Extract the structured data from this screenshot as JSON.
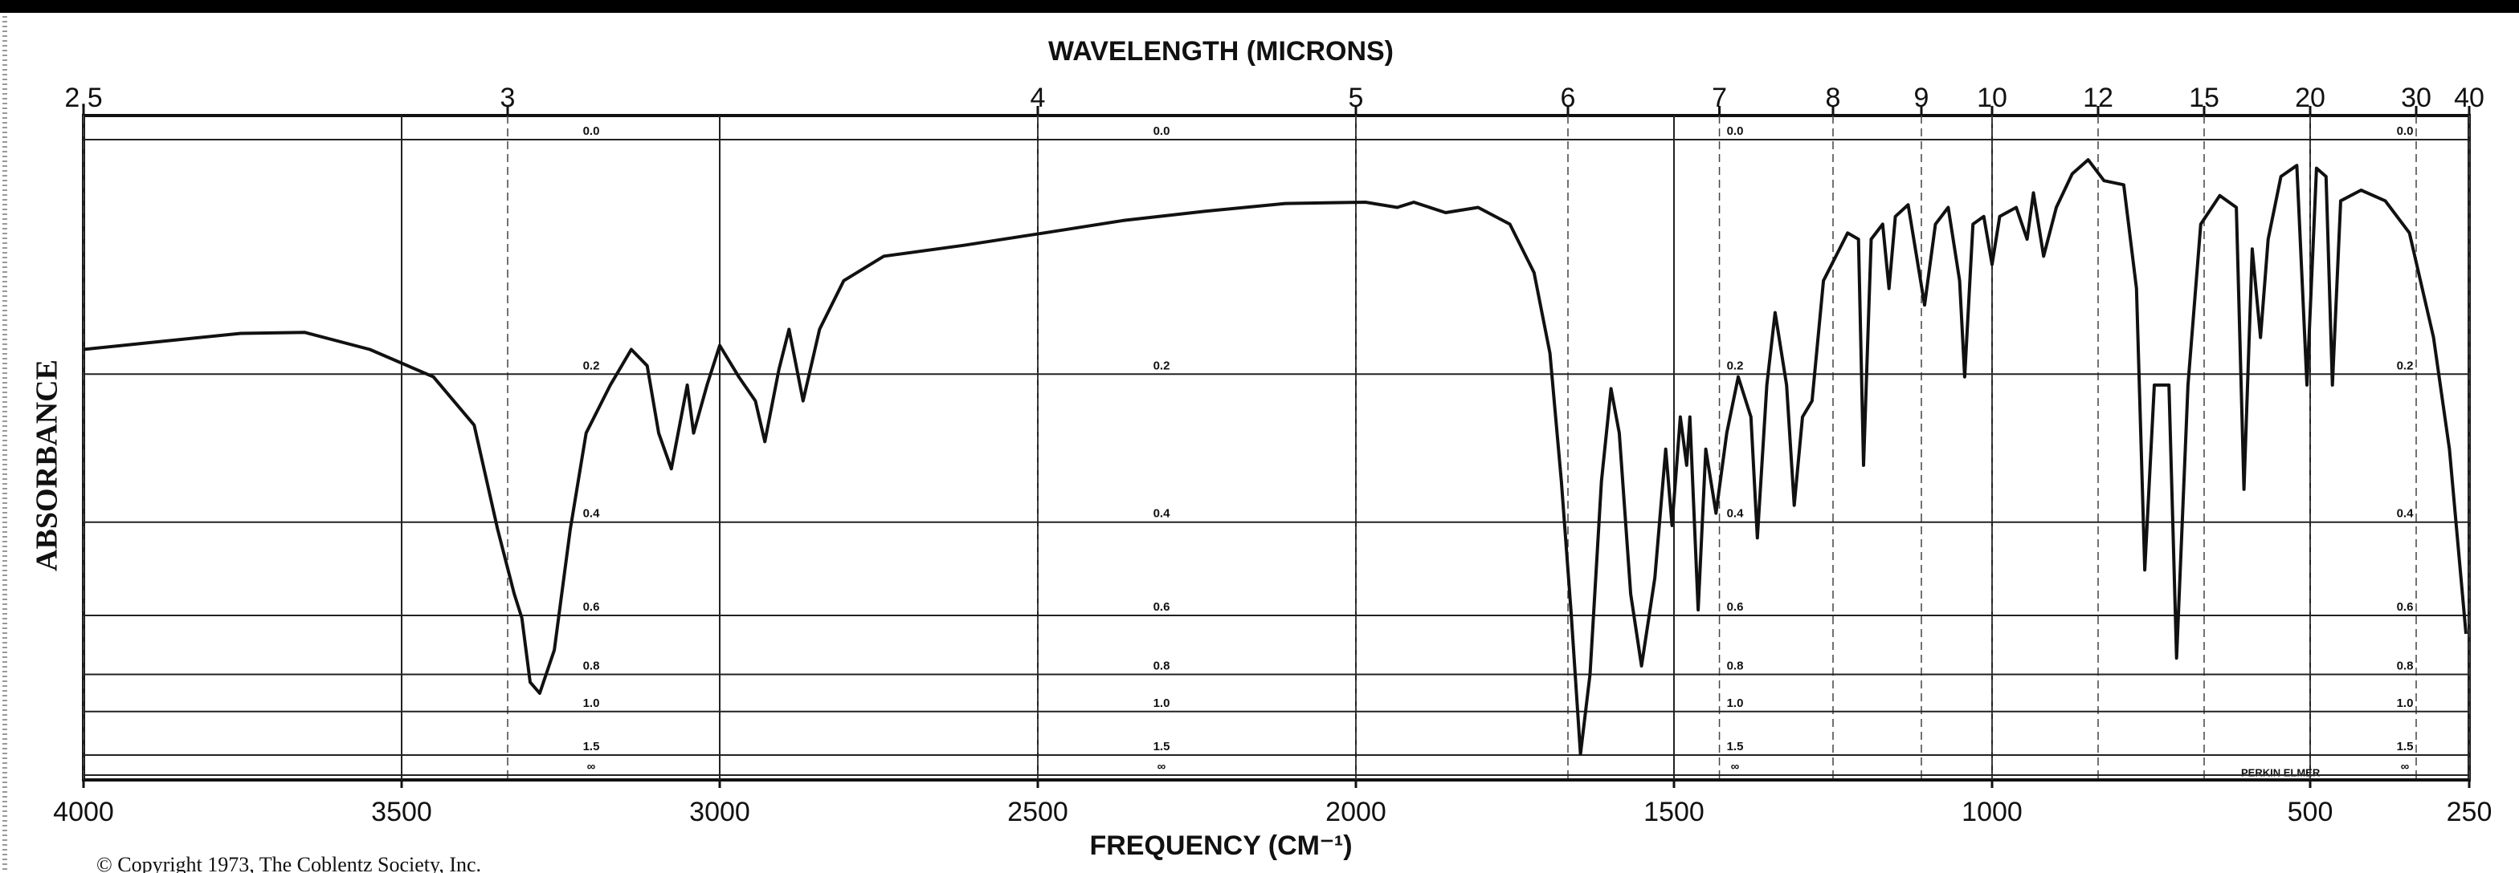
{
  "chart_data": {
    "type": "line",
    "x2_label": "WAVELENGTH (MICRONS)",
    "x_label": "FREQUENCY (CM⁻¹)",
    "y_label": "ABSORBANCE",
    "copyright": "© Copyright 1973, The Coblentz Society, Inc.",
    "brand": "PERKIN ELMER",
    "color": "#111111",
    "grid": true,
    "xlim": [
      4000,
      250
    ],
    "xticks": [
      4000,
      3500,
      3000,
      2500,
      2000,
      1500,
      1000,
      500,
      250
    ],
    "x2ticks": [
      2.5,
      3,
      4,
      5,
      6,
      7,
      8,
      9,
      10,
      12,
      15,
      20,
      30,
      40
    ],
    "ylim": [
      0,
      null
    ],
    "yticks": [
      {
        "value": 0,
        "label": "0.0"
      },
      0.2,
      0.4,
      0.6,
      0.8,
      {
        "value": 1,
        "label": "1.0"
      },
      1.5,
      {
        "value": null,
        "label": "∞"
      }
    ],
    "x": [
      4000,
      3879,
      3753,
      3652,
      3550,
      3450,
      3386,
      3349,
      3323,
      3311,
      3298,
      3283,
      3260,
      3235,
      3210,
      3172,
      3139,
      3114,
      3096,
      3076,
      3051,
      3041,
      3020,
      3000,
      2970,
      2944,
      2929,
      2907,
      2891,
      2869,
      2843,
      2805,
      2742,
      2616,
      2490,
      2364,
      2238,
      2111,
      1985,
      1935,
      1909,
      1859,
      1808,
      1758,
      1720,
      1695,
      1677,
      1662,
      1647,
      1632,
      1614,
      1599,
      1586,
      1568,
      1551,
      1530,
      1513,
      1503,
      1490,
      1480,
      1475,
      1462,
      1450,
      1434,
      1417,
      1399,
      1379,
      1369,
      1354,
      1341,
      1323,
      1311,
      1298,
      1283,
      1265,
      1227,
      1210,
      1202,
      1190,
      1172,
      1162,
      1152,
      1132,
      1106,
      1089,
      1069,
      1051,
      1043,
      1030,
      1013,
      1000,
      988,
      962,
      945,
      935,
      919,
      899,
      874,
      849,
      824,
      793,
      773,
      760,
      745,
      722,
      710,
      692,
      672,
      642,
      616,
      604,
      591,
      578,
      566,
      546,
      521,
      505,
      490,
      475,
      465,
      452,
      420,
      382,
      344,
      306,
      281,
      255
    ],
    "values": [
      0.174,
      0.166,
      0.158,
      0.157,
      0.174,
      0.203,
      0.259,
      0.413,
      0.545,
      0.607,
      0.835,
      0.89,
      0.706,
      0.413,
      0.269,
      0.212,
      0.174,
      0.191,
      0.269,
      0.317,
      0.212,
      0.269,
      0.212,
      0.17,
      0.203,
      0.23,
      0.28,
      0.195,
      0.154,
      0.23,
      0.154,
      0.109,
      0.088,
      0.079,
      0.069,
      0.059,
      0.052,
      0.046,
      0.045,
      0.049,
      0.045,
      0.053,
      0.049,
      0.062,
      0.102,
      0.178,
      0.335,
      0.585,
      1.48,
      0.799,
      0.335,
      0.216,
      0.269,
      0.545,
      0.765,
      0.508,
      0.29,
      0.406,
      0.249,
      0.312,
      0.249,
      0.585,
      0.29,
      0.385,
      0.269,
      0.203,
      0.249,
      0.428,
      0.212,
      0.138,
      0.212,
      0.372,
      0.249,
      0.23,
      0.109,
      0.069,
      0.074,
      0.312,
      0.074,
      0.062,
      0.116,
      0.056,
      0.047,
      0.131,
      0.062,
      0.049,
      0.109,
      0.203,
      0.062,
      0.056,
      0.095,
      0.056,
      0.049,
      0.074,
      0.038,
      0.088,
      0.049,
      0.024,
      0.014,
      0.029,
      0.032,
      0.116,
      0.491,
      0.212,
      0.212,
      0.735,
      0.212,
      0.062,
      0.04,
      0.049,
      0.347,
      0.082,
      0.162,
      0.074,
      0.026,
      0.018,
      0.212,
      0.02,
      0.026,
      0.212,
      0.044,
      0.036,
      0.044,
      0.069,
      0.162,
      0.29,
      0.653
    ]
  }
}
